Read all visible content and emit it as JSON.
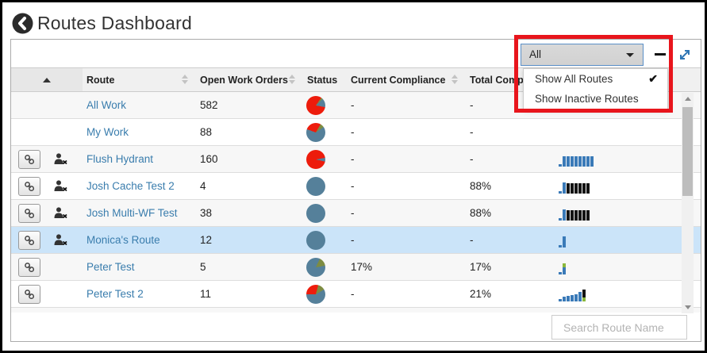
{
  "title": "Routes Dashboard",
  "toolbar": {
    "filter_value": "All",
    "menu": {
      "checked_icon": "✔",
      "items": [
        {
          "label": "Show All Routes",
          "checked": true
        },
        {
          "label": "Show Inactive Routes",
          "checked": false
        }
      ]
    }
  },
  "table": {
    "columns": [
      "Route",
      "Open Work Orders",
      "Status",
      "Current Compliance",
      "Total Compliance"
    ],
    "rows": [
      {
        "route": "All Work",
        "open_work_orders": "582",
        "current_compliance": "-",
        "total_compliance": "-",
        "has_link": false,
        "has_unassign": false,
        "selected": false,
        "pie": [
          [
            "red",
            35
          ],
          [
            "olive",
            10
          ],
          [
            "teal",
            55
          ],
          [
            "red",
            260
          ]
        ],
        "spark": []
      },
      {
        "route": "My Work",
        "open_work_orders": "88",
        "current_compliance": "-",
        "total_compliance": "-",
        "has_link": false,
        "has_unassign": false,
        "selected": false,
        "pie": [
          [
            "red",
            30
          ],
          [
            "olive",
            25
          ],
          [
            "teal",
            235
          ],
          [
            "red",
            70
          ]
        ],
        "spark": []
      },
      {
        "route": "Flush Hydrant",
        "open_work_orders": "160",
        "current_compliance": "-",
        "total_compliance": "-",
        "has_link": true,
        "has_unassign": true,
        "selected": false,
        "pie": [
          [
            "red",
            80
          ],
          [
            "teal",
            23
          ],
          [
            "red",
            257
          ]
        ],
        "spark": [
          [
            [
              "b",
              3
            ]
          ],
          [
            [
              "b",
              13
            ]
          ],
          [
            [
              "b",
              13
            ]
          ],
          [
            [
              "b",
              13
            ]
          ],
          [
            [
              "b",
              13
            ]
          ],
          [
            [
              "b",
              13
            ]
          ],
          [
            [
              "b",
              13
            ]
          ],
          [
            [
              "b",
              13
            ]
          ],
          [
            [
              "b",
              13
            ]
          ]
        ]
      },
      {
        "route": "Josh Cache Test 2",
        "open_work_orders": "4",
        "current_compliance": "-",
        "total_compliance": "88%",
        "has_link": true,
        "has_unassign": true,
        "selected": false,
        "pie": [
          [
            "teal",
            360
          ]
        ],
        "spark": [
          [
            [
              "b",
              3
            ]
          ],
          [
            [
              "b",
              14
            ]
          ],
          [
            [
              "k",
              13
            ]
          ],
          [
            [
              "k",
              13
            ]
          ],
          [
            [
              "k",
              13
            ]
          ],
          [
            [
              "k",
              13
            ]
          ],
          [
            [
              "k",
              13
            ]
          ],
          [
            [
              "k",
              13
            ]
          ]
        ]
      },
      {
        "route": "Josh Multi-WF Test",
        "open_work_orders": "38",
        "current_compliance": "-",
        "total_compliance": "88%",
        "has_link": true,
        "has_unassign": true,
        "selected": false,
        "pie": [
          [
            "teal",
            360
          ]
        ],
        "spark": [
          [
            [
              "b",
              3
            ]
          ],
          [
            [
              "b",
              14
            ]
          ],
          [
            [
              "k",
              13
            ]
          ],
          [
            [
              "k",
              13
            ]
          ],
          [
            [
              "k",
              13
            ]
          ],
          [
            [
              "k",
              13
            ]
          ],
          [
            [
              "k",
              13
            ]
          ],
          [
            [
              "k",
              13
            ]
          ]
        ]
      },
      {
        "route": "Monica's Route",
        "open_work_orders": "12",
        "current_compliance": "-",
        "total_compliance": "-",
        "has_link": true,
        "has_unassign": true,
        "selected": true,
        "pie": [
          [
            "teal",
            360
          ]
        ],
        "spark": [
          [
            [
              "b",
              3
            ]
          ],
          [
            [
              "b",
              14
            ]
          ]
        ]
      },
      {
        "route": "Peter Test",
        "open_work_orders": "5",
        "current_compliance": "17%",
        "total_compliance": "17%",
        "has_link": true,
        "has_unassign": false,
        "selected": false,
        "pie": [
          [
            "teal",
            25
          ],
          [
            "olive",
            55
          ],
          [
            "teal",
            280
          ]
        ],
        "spark": [
          [
            [
              "b",
              3
            ]
          ],
          [
            [
              "b",
              9
            ],
            [
              "g",
              5
            ]
          ]
        ]
      },
      {
        "route": "Peter Test 2",
        "open_work_orders": "11",
        "current_compliance": "-",
        "total_compliance": "21%",
        "has_link": true,
        "has_unassign": false,
        "selected": false,
        "pie": [
          [
            "red",
            15
          ],
          [
            "olive",
            45
          ],
          [
            "teal",
            210
          ],
          [
            "red",
            90
          ]
        ],
        "spark": [
          [
            [
              "b",
              3
            ]
          ],
          [
            [
              "b",
              6
            ]
          ],
          [
            [
              "b",
              7
            ]
          ],
          [
            [
              "b",
              8
            ]
          ],
          [
            [
              "b",
              9
            ]
          ],
          [
            [
              "b",
              12
            ]
          ],
          [
            [
              "g",
              5
            ],
            [
              "k",
              10
            ]
          ]
        ]
      }
    ]
  },
  "footer": {
    "search_placeholder": "Search Route Name"
  },
  "colors": {
    "accent_red": "#e8151c",
    "link": "#3a7dad",
    "selected_row": "#cbe4f9",
    "pie": {
      "red": "#ed1c0c",
      "teal": "#55809a",
      "olive": "#7d8c42"
    },
    "spark": {
      "b": "#3a7ab8",
      "k": "#141414",
      "g": "#8ab83c"
    }
  }
}
